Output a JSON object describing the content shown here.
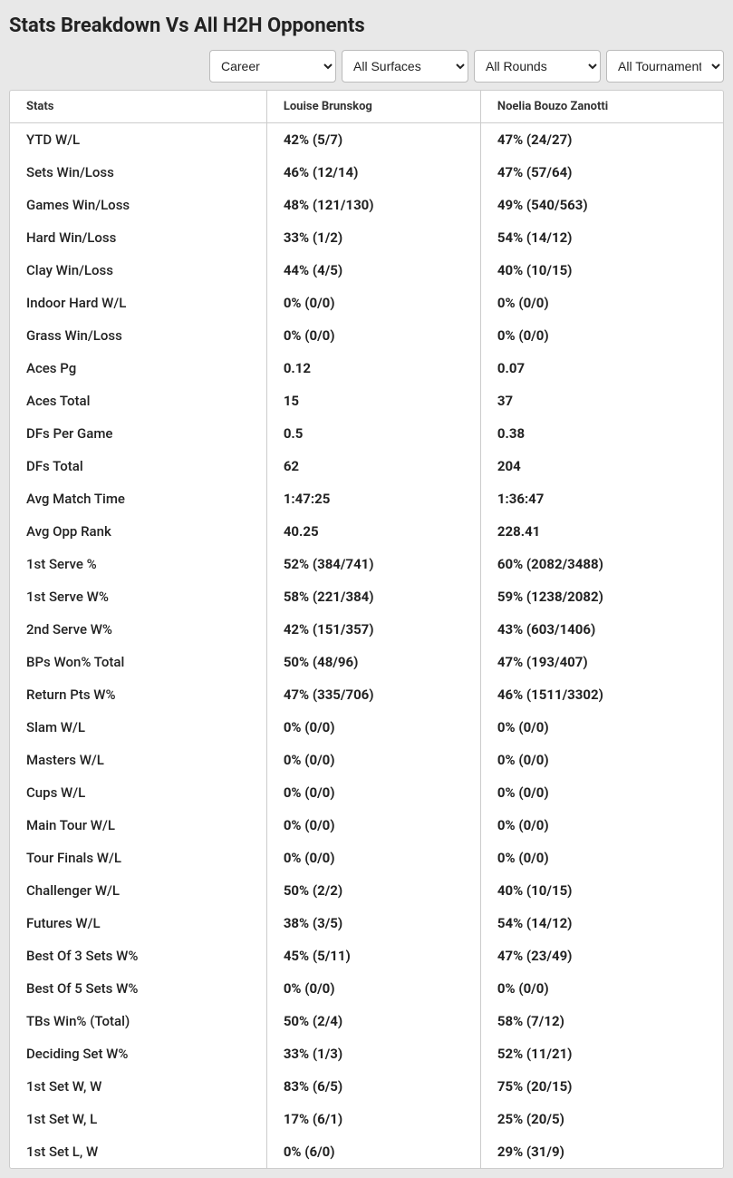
{
  "title": "Stats Breakdown Vs All H2H Opponents",
  "filters": {
    "career": {
      "selected": "Career",
      "options": [
        "Career"
      ]
    },
    "surfaces": {
      "selected": "All Surfaces",
      "options": [
        "All Surfaces"
      ]
    },
    "rounds": {
      "selected": "All Rounds",
      "options": [
        "All Rounds"
      ]
    },
    "tournaments": {
      "selected": "All Tournaments",
      "options": [
        "All Tournaments"
      ]
    }
  },
  "table": {
    "headers": {
      "stats": "Stats",
      "player1": "Louise Brunskog",
      "player2": "Noelia Bouzo Zanotti"
    },
    "rows": [
      {
        "label": "YTD W/L",
        "p1": "42% (5/7)",
        "p2": "47% (24/27)"
      },
      {
        "label": "Sets Win/Loss",
        "p1": "46% (12/14)",
        "p2": "47% (57/64)"
      },
      {
        "label": "Games Win/Loss",
        "p1": "48% (121/130)",
        "p2": "49% (540/563)"
      },
      {
        "label": "Hard Win/Loss",
        "p1": "33% (1/2)",
        "p2": "54% (14/12)"
      },
      {
        "label": "Clay Win/Loss",
        "p1": "44% (4/5)",
        "p2": "40% (10/15)"
      },
      {
        "label": "Indoor Hard W/L",
        "p1": "0% (0/0)",
        "p2": "0% (0/0)"
      },
      {
        "label": "Grass Win/Loss",
        "p1": "0% (0/0)",
        "p2": "0% (0/0)"
      },
      {
        "label": "Aces Pg",
        "p1": "0.12",
        "p2": "0.07"
      },
      {
        "label": "Aces Total",
        "p1": "15",
        "p2": "37"
      },
      {
        "label": "DFs Per Game",
        "p1": "0.5",
        "p2": "0.38"
      },
      {
        "label": "DFs Total",
        "p1": "62",
        "p2": "204"
      },
      {
        "label": "Avg Match Time",
        "p1": "1:47:25",
        "p2": "1:36:47"
      },
      {
        "label": "Avg Opp Rank",
        "p1": "40.25",
        "p2": "228.41"
      },
      {
        "label": "1st Serve %",
        "p1": "52% (384/741)",
        "p2": "60% (2082/3488)"
      },
      {
        "label": "1st Serve W%",
        "p1": "58% (221/384)",
        "p2": "59% (1238/2082)"
      },
      {
        "label": "2nd Serve W%",
        "p1": "42% (151/357)",
        "p2": "43% (603/1406)"
      },
      {
        "label": "BPs Won% Total",
        "p1": "50% (48/96)",
        "p2": "47% (193/407)"
      },
      {
        "label": "Return Pts W%",
        "p1": "47% (335/706)",
        "p2": "46% (1511/3302)"
      },
      {
        "label": "Slam W/L",
        "p1": "0% (0/0)",
        "p2": "0% (0/0)"
      },
      {
        "label": "Masters W/L",
        "p1": "0% (0/0)",
        "p2": "0% (0/0)"
      },
      {
        "label": "Cups W/L",
        "p1": "0% (0/0)",
        "p2": "0% (0/0)"
      },
      {
        "label": "Main Tour W/L",
        "p1": "0% (0/0)",
        "p2": "0% (0/0)"
      },
      {
        "label": "Tour Finals W/L",
        "p1": "0% (0/0)",
        "p2": "0% (0/0)"
      },
      {
        "label": "Challenger W/L",
        "p1": "50% (2/2)",
        "p2": "40% (10/15)"
      },
      {
        "label": "Futures W/L",
        "p1": "38% (3/5)",
        "p2": "54% (14/12)"
      },
      {
        "label": "Best Of 3 Sets W%",
        "p1": "45% (5/11)",
        "p2": "47% (23/49)"
      },
      {
        "label": "Best Of 5 Sets W%",
        "p1": "0% (0/0)",
        "p2": "0% (0/0)"
      },
      {
        "label": "TBs Win% (Total)",
        "p1": "50% (2/4)",
        "p2": "58% (7/12)"
      },
      {
        "label": "Deciding Set W%",
        "p1": "33% (1/3)",
        "p2": "52% (11/21)"
      },
      {
        "label": "1st Set W, W",
        "p1": "83% (6/5)",
        "p2": "75% (20/15)"
      },
      {
        "label": "1st Set W, L",
        "p1": "17% (6/1)",
        "p2": "25% (20/5)"
      },
      {
        "label": "1st Set L, W",
        "p1": "0% (6/0)",
        "p2": "29% (31/9)"
      }
    ]
  },
  "style": {
    "page_bg": "#e8e8e8",
    "panel_bg": "#ffffff",
    "border_color": "#cccccc",
    "header_font_size": 13,
    "body_font_size": 15,
    "title_font_size": 22
  }
}
